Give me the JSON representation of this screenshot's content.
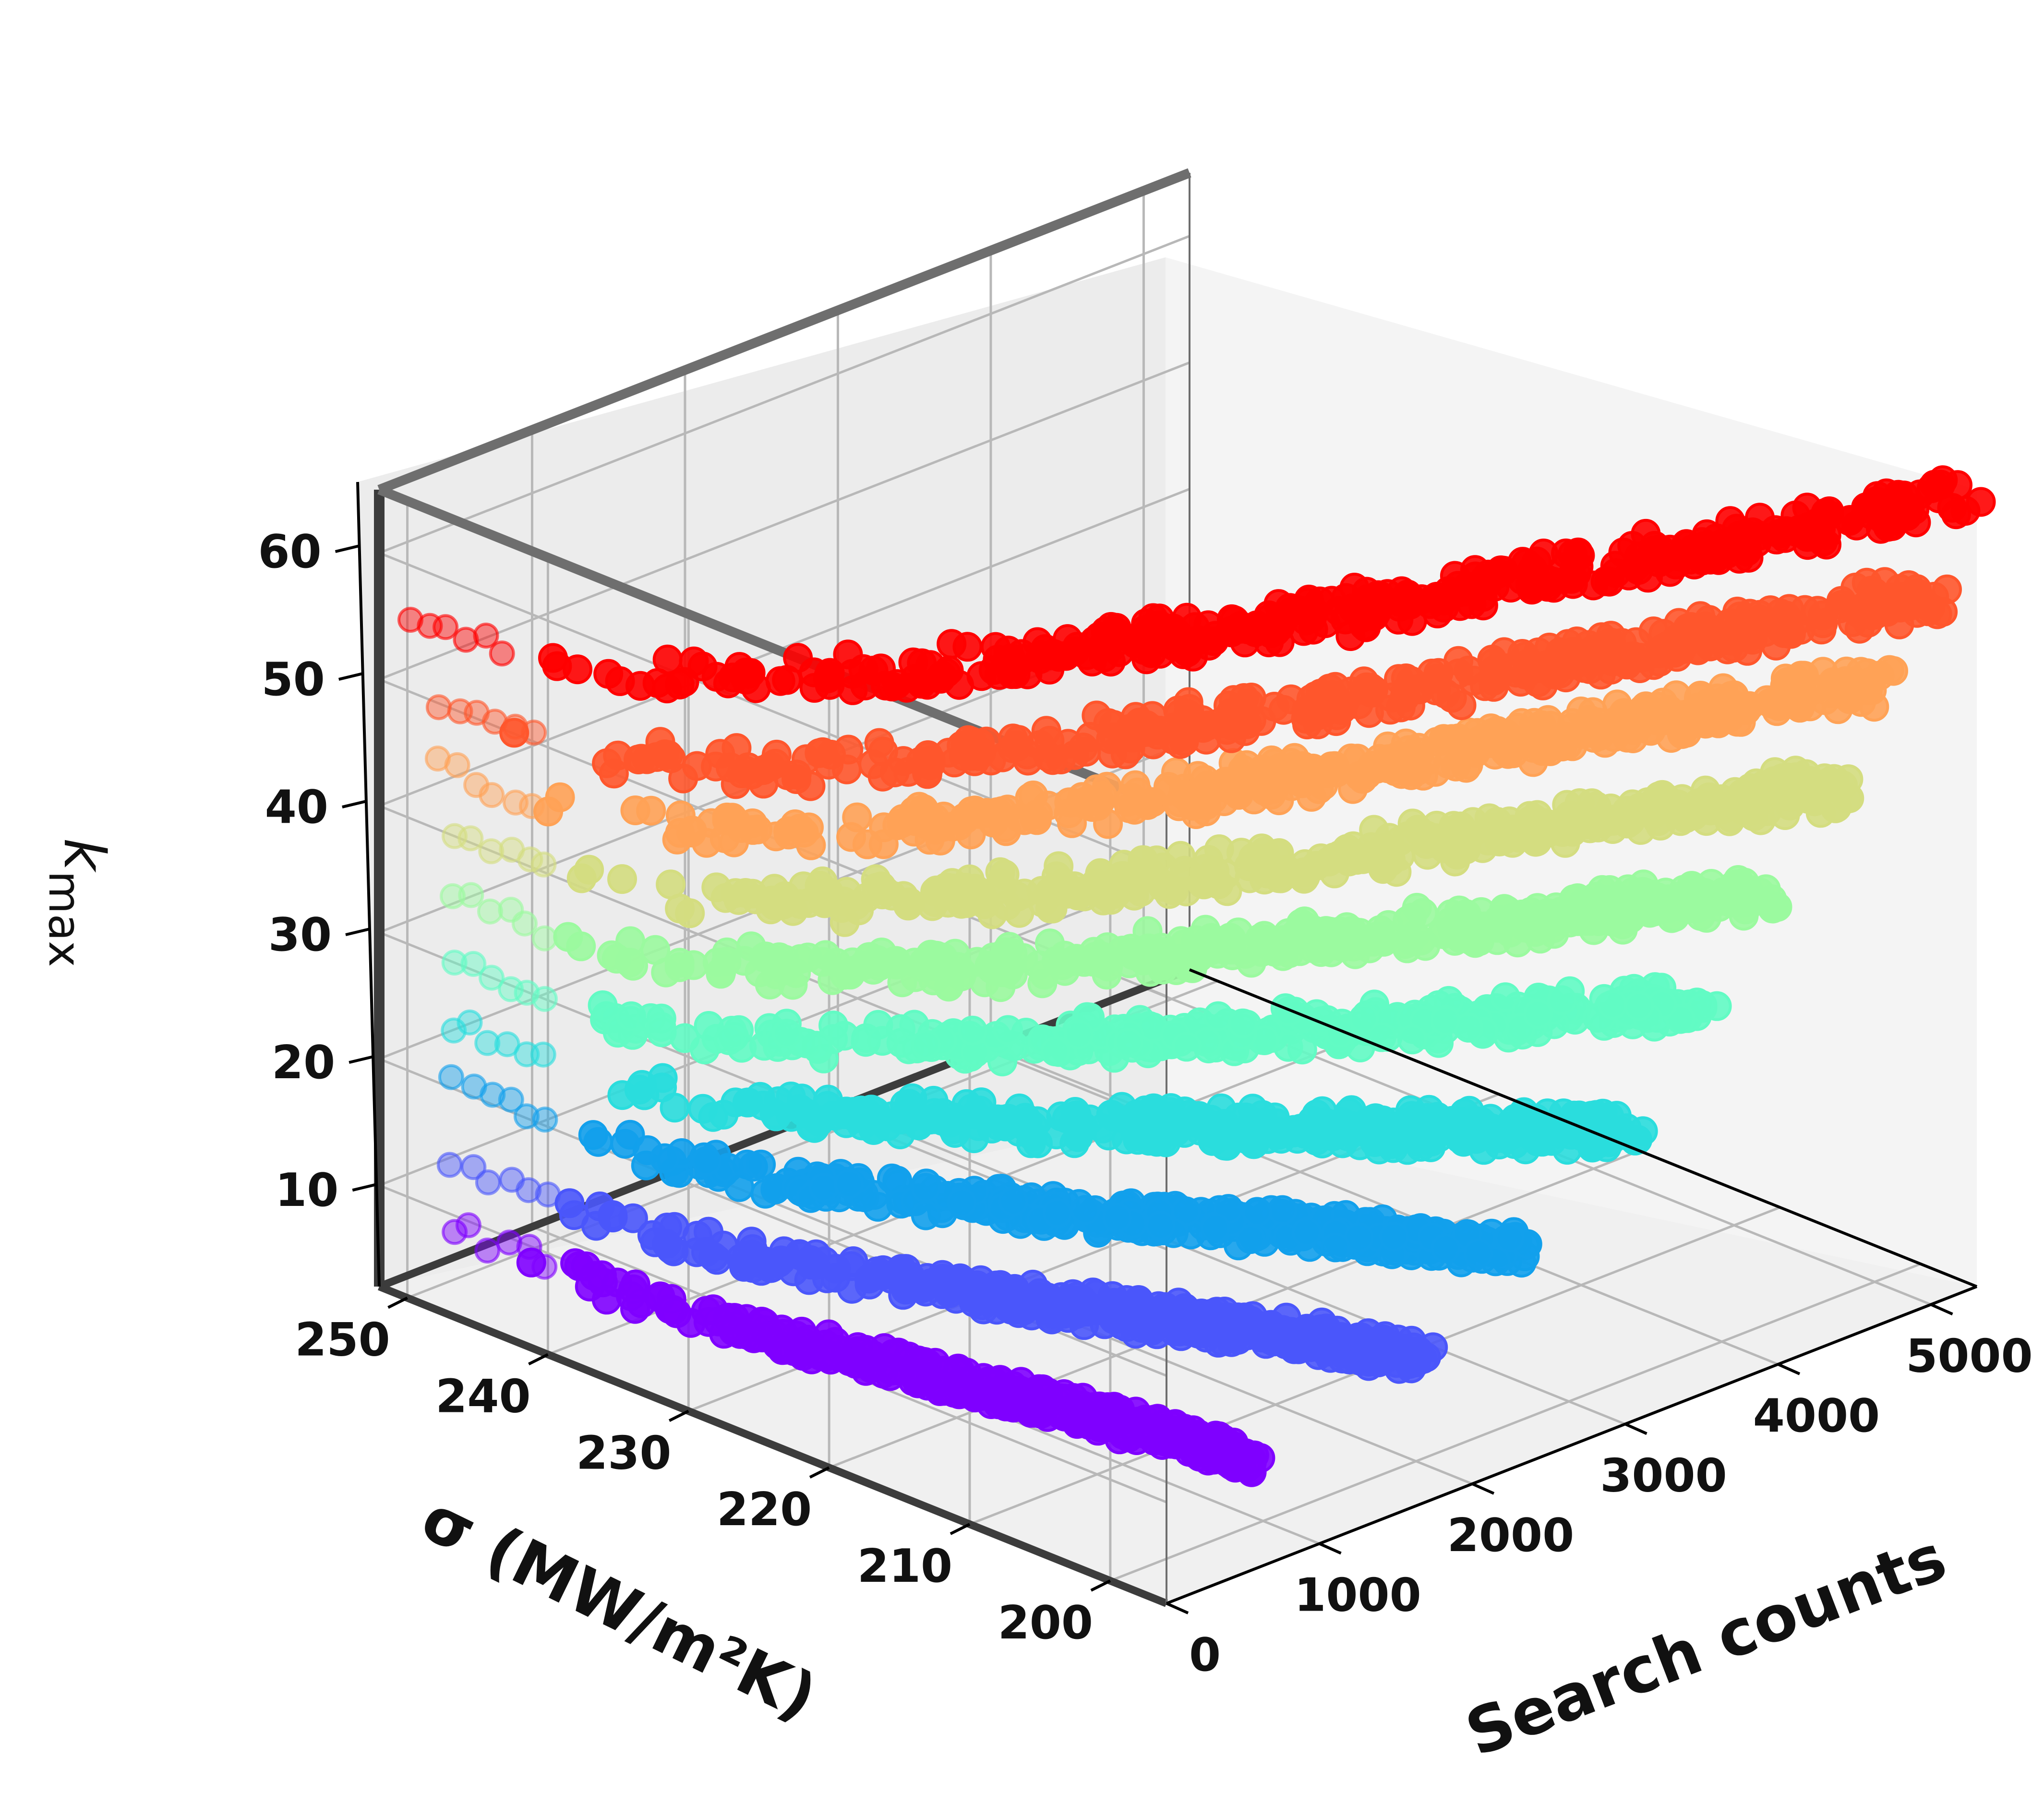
{
  "chart_data": {
    "type": "scatter",
    "projection": "3d",
    "x_axis": {
      "label": "Search counts",
      "ticks": [
        "0",
        "1000",
        "2000",
        "3000",
        "4000",
        "5000"
      ],
      "range": [
        0,
        5300
      ]
    },
    "y_axis": {
      "label": "σ (MW/m²K)",
      "ticks": [
        "200",
        "210",
        "220",
        "230",
        "240",
        "250"
      ],
      "range": [
        196,
        252
      ]
    },
    "z_axis": {
      "label": "k",
      "label_subscript": "max",
      "ticks": [
        "10",
        "20",
        "30",
        "40",
        "50",
        "60"
      ],
      "range": [
        2,
        65
      ]
    },
    "grid": true,
    "colormap": "rainbow",
    "series": [
      {
        "color": "#7f00ff",
        "z_start": 9,
        "z_end": 4.5,
        "sigma_start": 247,
        "sigma_end": 203,
        "count_end": 1200
      },
      {
        "color": "#4a56fb",
        "z_start": 14,
        "z_end": 9.5,
        "sigma_start": 247,
        "sigma_end": 201,
        "count_end": 2100
      },
      {
        "color": "#12a0ec",
        "z_start": 20,
        "z_end": 15.5,
        "sigma_start": 247,
        "sigma_end": 200,
        "count_end": 2700
      },
      {
        "color": "#2adddd",
        "z_start": 25,
        "z_end": 22.5,
        "sigma_start": 247,
        "sigma_end": 199,
        "count_end": 3300
      },
      {
        "color": "#62fbc4",
        "z_start": 30,
        "z_end": 30,
        "sigma_start": 247,
        "sigma_end": 199,
        "count_end": 3800
      },
      {
        "color": "#9bfa9f",
        "z_start": 35,
        "z_end": 37,
        "sigma_start": 247,
        "sigma_end": 199,
        "count_end": 4200
      },
      {
        "color": "#d4dd80",
        "z_start": 40,
        "z_end": 44,
        "sigma_start": 247,
        "sigma_end": 198,
        "count_end": 4600
      },
      {
        "color": "#ffa256",
        "z_start": 45,
        "z_end": 51,
        "sigma_start": 248,
        "sigma_end": 198,
        "count_end": 4900
      },
      {
        "color": "#ff562c",
        "z_start": 50,
        "z_end": 57,
        "sigma_start": 248,
        "sigma_end": 197,
        "count_end": 5150
      },
      {
        "color": "#ff0000",
        "z_start": 56,
        "z_end": 64,
        "sigma_start": 250,
        "sigma_end": 197,
        "count_end": 5300
      }
    ]
  }
}
